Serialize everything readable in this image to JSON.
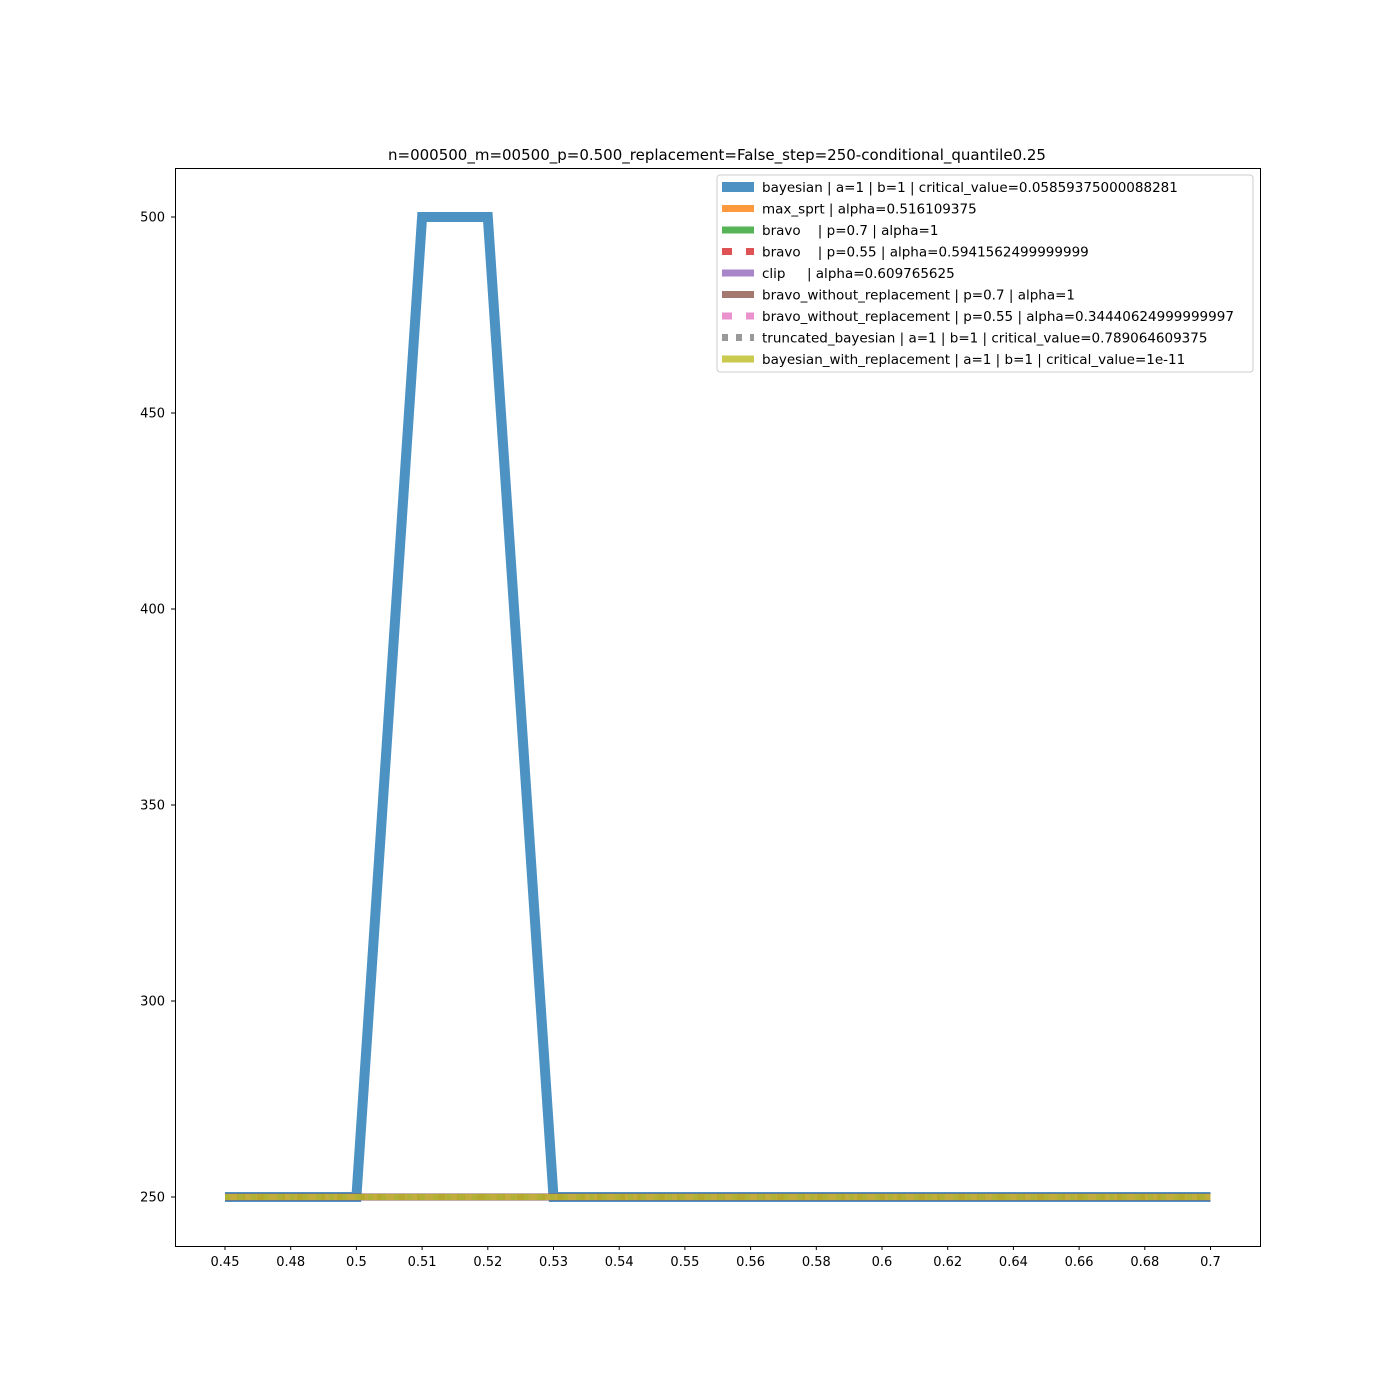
{
  "chart_data": {
    "type": "line",
    "title": "n=000500_m=00500_p=0.500_replacement=False_step=250-conditional_quantile0.25",
    "xlabel": "",
    "ylabel": "",
    "x": [
      "0.45",
      "0.48",
      "0.5",
      "0.51",
      "0.52",
      "0.53",
      "0.54",
      "0.55",
      "0.56",
      "0.58",
      "0.6",
      "0.62",
      "0.64",
      "0.66",
      "0.68",
      "0.7"
    ],
    "y_ticks": [
      250,
      300,
      350,
      400,
      450,
      500
    ],
    "ylim": [
      237.5,
      512.5
    ],
    "grid": false,
    "legend_position": "top-right",
    "series": [
      {
        "name": "bayesian | a=1 | b=1 | critical_value=0.05859375000088281",
        "color": "#1f77b4",
        "style": "solid",
        "values": [
          250,
          250,
          250,
          500,
          500,
          250,
          250,
          250,
          250,
          250,
          250,
          250,
          250,
          250,
          250,
          250
        ]
      },
      {
        "name": "max_sprt | alpha=0.516109375",
        "color": "#ff7f0e",
        "style": "solid",
        "values": [
          250,
          250,
          250,
          250,
          250,
          250,
          250,
          250,
          250,
          250,
          250,
          250,
          250,
          250,
          250,
          250
        ]
      },
      {
        "name": "bravo    | p=0.7 | alpha=1",
        "color": "#2ca02c",
        "style": "solid",
        "values": [
          250,
          250,
          250,
          250,
          250,
          250,
          250,
          250,
          250,
          250,
          250,
          250,
          250,
          250,
          250,
          250
        ]
      },
      {
        "name": "bravo    | p=0.55 | alpha=0.5941562499999999",
        "color": "#d62728",
        "style": "dashed",
        "values": [
          250,
          250,
          250,
          250,
          250,
          250,
          250,
          250,
          250,
          250,
          250,
          250,
          250,
          250,
          250,
          250
        ]
      },
      {
        "name": "clip     | alpha=0.609765625",
        "color": "#9467bd",
        "style": "solid",
        "values": [
          250,
          250,
          250,
          250,
          250,
          250,
          250,
          250,
          250,
          250,
          250,
          250,
          250,
          250,
          250,
          250
        ]
      },
      {
        "name": "bravo_without_replacement | p=0.7 | alpha=1",
        "color": "#8c564b",
        "style": "solid",
        "values": [
          250,
          250,
          250,
          250,
          250,
          250,
          250,
          250,
          250,
          250,
          250,
          250,
          250,
          250,
          250,
          250
        ]
      },
      {
        "name": "bravo_without_replacement | p=0.55 | alpha=0.34440624999999997",
        "color": "#e377c2",
        "style": "dashed",
        "values": [
          250,
          250,
          250,
          250,
          250,
          250,
          250,
          250,
          250,
          250,
          250,
          250,
          250,
          250,
          250,
          250
        ]
      },
      {
        "name": "truncated_bayesian | a=1 | b=1 | critical_value=0.789064609375",
        "color": "#7f7f7f",
        "style": "dotted",
        "values": [
          250,
          250,
          250,
          250,
          250,
          250,
          250,
          250,
          250,
          250,
          250,
          250,
          250,
          250,
          250,
          250
        ]
      },
      {
        "name": "bayesian_with_replacement | a=1 | b=1 | critical_value=1e-11",
        "color": "#bcbd22",
        "style": "solid",
        "values": [
          250,
          250,
          250,
          250,
          250,
          250,
          250,
          250,
          250,
          250,
          250,
          250,
          250,
          250,
          250,
          250
        ]
      }
    ]
  }
}
